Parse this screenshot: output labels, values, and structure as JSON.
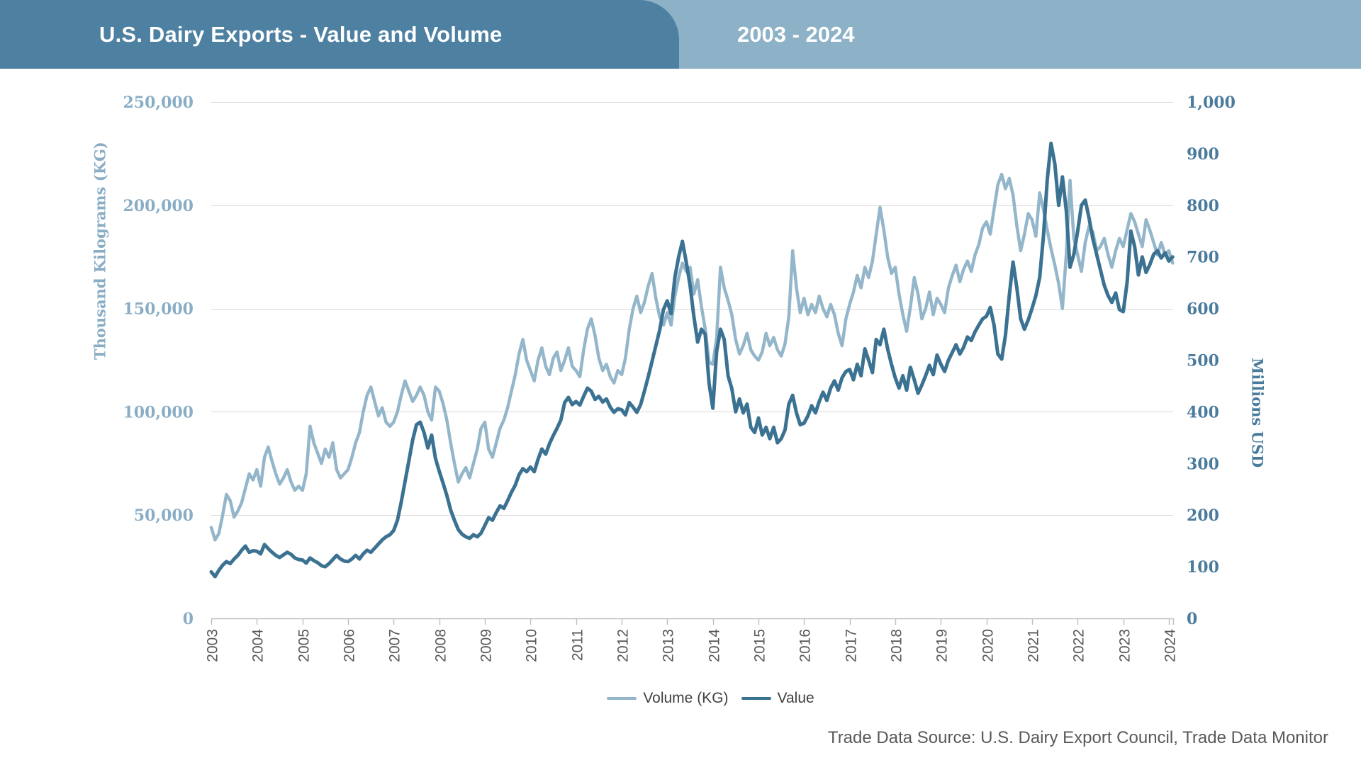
{
  "header": {
    "title": "U.S. Dairy Exports - Value and Volume",
    "date_range": "2003 - 2024",
    "title_box_color": "#4e80a1",
    "band_color": "#8db1c7"
  },
  "footer": {
    "source": "Trade Data Source: U.S. Dairy Export Council, Trade Data Monitor"
  },
  "legend": {
    "items": [
      {
        "label": "Volume (KG)",
        "color": "#94b6ca"
      },
      {
        "label": "Value",
        "color": "#3b7292"
      }
    ]
  },
  "chart_data": {
    "type": "line",
    "title": "U.S. Dairy Exports - Value and Volume, 2003 - 2024",
    "x": {
      "freq": "monthly",
      "start": "2003-01",
      "end": "2024-02",
      "tick_years": [
        "2003",
        "2004",
        "2005",
        "2006",
        "2007",
        "2008",
        "2009",
        "2010",
        "2011",
        "2012",
        "2013",
        "2014",
        "2015",
        "2016",
        "2017",
        "2018",
        "2019",
        "2020",
        "2021",
        "2022",
        "2023",
        "2024"
      ]
    },
    "left_axis": {
      "title": "Thousand Kilograms (KG)",
      "min": 0,
      "max": 250000,
      "tick_step": 50000,
      "tick_labels": [
        "0",
        "50,000",
        "100,000",
        "150,000",
        "200,000",
        "250,000"
      ],
      "text_color": "#89adc5"
    },
    "right_axis": {
      "title": "Millions USD",
      "min": 0,
      "max": 1000,
      "tick_step": 100,
      "tick_labels": [
        "0",
        "100",
        "200",
        "300",
        "400",
        "500",
        "600",
        "700",
        "800",
        "900",
        "1,000"
      ],
      "text_color": "#4a7b9d"
    },
    "grid": "horizontal, at shared lines 0-250k (left) / 0-1000 step 200 (right)",
    "legend_position": "bottom-center",
    "series": [
      {
        "name": "Volume (KG)",
        "axis": "left",
        "unit": "thousand kilograms",
        "color": "#94b6ca",
        "stroke_width": 4.5,
        "values": [
          44000,
          38000,
          41000,
          50000,
          60000,
          57000,
          49000,
          52000,
          56000,
          63000,
          70000,
          67000,
          72000,
          64000,
          78000,
          83000,
          76000,
          70000,
          65000,
          68000,
          72000,
          66000,
          62000,
          64000,
          62000,
          70000,
          93000,
          85000,
          80000,
          75000,
          82000,
          78000,
          85000,
          72000,
          68000,
          70000,
          72000,
          78000,
          85000,
          90000,
          100000,
          108000,
          112000,
          105000,
          98000,
          102000,
          95000,
          93000,
          95000,
          100000,
          108000,
          115000,
          110000,
          105000,
          108000,
          112000,
          108000,
          100000,
          96000,
          112000,
          110000,
          104000,
          96000,
          85000,
          75000,
          66000,
          70000,
          73000,
          68000,
          75000,
          82000,
          92000,
          95000,
          82000,
          78000,
          85000,
          92000,
          96000,
          102000,
          110000,
          118000,
          128000,
          135000,
          125000,
          120000,
          115000,
          125000,
          131000,
          122000,
          118000,
          126000,
          129000,
          120000,
          125000,
          131000,
          122000,
          120000,
          117000,
          130000,
          140000,
          145000,
          137000,
          126000,
          120000,
          123000,
          117000,
          114000,
          120000,
          118000,
          126000,
          140000,
          150000,
          156000,
          148000,
          153000,
          161000,
          167000,
          155000,
          146000,
          142000,
          148000,
          142000,
          156000,
          165000,
          172000,
          168000,
          170000,
          157000,
          164000,
          151000,
          140000,
          124000,
          123000,
          136000,
          170000,
          160000,
          154000,
          147000,
          135000,
          128000,
          132000,
          138000,
          130000,
          127000,
          125000,
          129000,
          138000,
          132000,
          136000,
          130000,
          127000,
          133000,
          146000,
          178000,
          160000,
          148000,
          155000,
          147000,
          152000,
          148000,
          156000,
          150000,
          146000,
          152000,
          147000,
          138000,
          132000,
          145000,
          152000,
          158000,
          166000,
          160000,
          170000,
          165000,
          173000,
          186000,
          199000,
          188000,
          175000,
          167000,
          170000,
          157000,
          147000,
          139000,
          151000,
          165000,
          157000,
          145000,
          150000,
          158000,
          147000,
          155000,
          152000,
          148000,
          160000,
          166000,
          171000,
          163000,
          169000,
          173000,
          168000,
          176000,
          181000,
          189000,
          192000,
          186000,
          198000,
          210000,
          215000,
          208000,
          213000,
          205000,
          190000,
          178000,
          186000,
          196000,
          193000,
          185000,
          206000,
          198000,
          188000,
          179000,
          171000,
          162000,
          150000,
          176000,
          212000,
          184000,
          176000,
          168000,
          182000,
          190000,
          187000,
          178000,
          180000,
          184000,
          176000,
          170000,
          178000,
          184000,
          180000,
          188000,
          196000,
          192000,
          186000,
          180000,
          193000,
          188000,
          182000,
          176000,
          182000,
          176000,
          178000,
          172000
        ]
      },
      {
        "name": "Value",
        "axis": "right",
        "unit": "millions USD",
        "color": "#3b7292",
        "stroke_width": 5,
        "values": [
          90,
          81,
          93,
          103,
          110,
          106,
          115,
          122,
          132,
          140,
          128,
          131,
          130,
          125,
          143,
          135,
          128,
          122,
          118,
          123,
          128,
          124,
          117,
          114,
          113,
          107,
          117,
          112,
          108,
          102,
          100,
          106,
          114,
          122,
          115,
          111,
          110,
          115,
          122,
          115,
          125,
          132,
          128,
          136,
          144,
          152,
          158,
          162,
          170,
          190,
          225,
          265,
          305,
          345,
          375,
          380,
          360,
          330,
          355,
          310,
          285,
          262,
          238,
          210,
          190,
          172,
          163,
          158,
          155,
          162,
          158,
          165,
          180,
          195,
          190,
          205,
          218,
          213,
          228,
          244,
          258,
          278,
          290,
          284,
          293,
          284,
          308,
          328,
          318,
          338,
          354,
          368,
          384,
          418,
          428,
          414,
          420,
          413,
          430,
          446,
          440,
          424,
          430,
          419,
          425,
          409,
          399,
          406,
          404,
          394,
          418,
          409,
          399,
          414,
          440,
          468,
          498,
          528,
          558,
          598,
          615,
          590,
          660,
          700,
          730,
          690,
          645,
          585,
          535,
          560,
          550,
          455,
          407,
          517,
          560,
          540,
          470,
          445,
          400,
          425,
          398,
          415,
          370,
          360,
          388,
          355,
          370,
          348,
          370,
          340,
          348,
          365,
          415,
          432,
          398,
          375,
          378,
          392,
          412,
          398,
          420,
          438,
          422,
          446,
          460,
          442,
          466,
          478,
          482,
          462,
          492,
          470,
          522,
          500,
          476,
          540,
          530,
          560,
          522,
          492,
          466,
          446,
          470,
          442,
          486,
          462,
          436,
          452,
          470,
          490,
          472,
          510,
          492,
          478,
          500,
          515,
          530,
          512,
          525,
          545,
          538,
          555,
          568,
          580,
          585,
          602,
          568,
          512,
          502,
          548,
          625,
          690,
          640,
          580,
          560,
          578,
          600,
          625,
          660,
          740,
          850,
          920,
          880,
          800,
          855,
          790,
          680,
          705,
          750,
          800,
          810,
          775,
          735,
          705,
          675,
          645,
          625,
          612,
          630,
          598,
          594,
          650,
          750,
          720,
          665,
          700,
          670,
          685,
          705,
          712,
          698,
          708,
          692,
          700
        ]
      }
    ]
  }
}
